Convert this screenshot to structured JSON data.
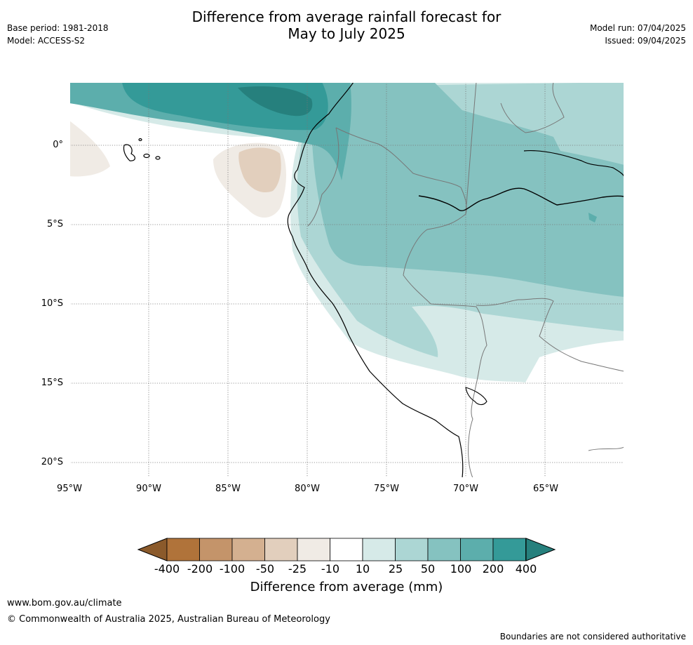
{
  "title_line1": "Difference from average rainfall forecast for",
  "title_line2": "May to July 2025",
  "meta_left": [
    "Base period: 1981-2018",
    "Model: ACCESS-S2"
  ],
  "meta_right": [
    "Model run: 07/04/2025",
    "Issued: 09/04/2025"
  ],
  "lat_ticks": [
    "0°",
    "5°S",
    "10°S",
    "15°S",
    "20°S"
  ],
  "lon_ticks": [
    "95°W",
    "90°W",
    "85°W",
    "80°W",
    "75°W",
    "70°W",
    "65°W"
  ],
  "colorbar": {
    "labels": [
      "-400",
      "-200",
      "-100",
      "-50",
      "-25",
      "-10",
      "10",
      "25",
      "50",
      "100",
      "200",
      "400"
    ],
    "colors": [
      "#8b5a2b",
      "#b0733a",
      "#c4946a",
      "#d4b090",
      "#e2cfbd",
      "#f0ebe5",
      "#ffffff",
      "#d6eae8",
      "#acd6d4",
      "#85c2c0",
      "#5caeac",
      "#349a98",
      "#26807d"
    ],
    "title": "Difference from average (mm)"
  },
  "footer": {
    "url": "www.bom.gov.au/climate",
    "copyright": "© Commonwealth of Australia 2025, Australian Bureau of Meteorology",
    "disclaimer": "Boundaries are not considered authoritative"
  }
}
